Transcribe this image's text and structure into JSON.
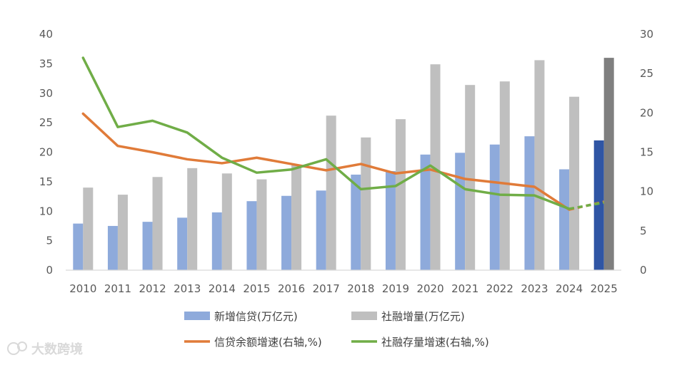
{
  "chart_data": {
    "type": "bar",
    "categories": [
      "2010",
      "2011",
      "2012",
      "2013",
      "2014",
      "2015",
      "2016",
      "2017",
      "2018",
      "2019",
      "2020",
      "2021",
      "2022",
      "2023",
      "2024",
      "2025"
    ],
    "y_left": {
      "ticks": [
        "0",
        "5",
        "10",
        "15",
        "20",
        "25",
        "30",
        "35",
        "40"
      ],
      "ylim": [
        0,
        40
      ]
    },
    "y_right": {
      "ticks": [
        "0",
        "5",
        "10",
        "15",
        "20",
        "25",
        "30"
      ],
      "ylim": [
        0,
        30
      ]
    },
    "series": [
      {
        "name": "新增信贷(万亿元)",
        "kind": "bar",
        "axis": "left",
        "color": "#8eaadb",
        "highlight_color": "#2f55a4",
        "values": [
          7.9,
          7.5,
          8.2,
          8.9,
          9.8,
          11.7,
          12.6,
          13.5,
          16.2,
          16.8,
          19.6,
          19.9,
          21.3,
          22.7,
          17.1,
          22.0
        ]
      },
      {
        "name": "社融增量(万亿元)",
        "kind": "bar",
        "axis": "left",
        "color": "#bfbfbf",
        "highlight_color": "#7f7f7f",
        "values": [
          14.0,
          12.8,
          15.8,
          17.3,
          16.4,
          15.4,
          17.8,
          26.2,
          22.5,
          25.6,
          34.9,
          31.4,
          32.0,
          35.6,
          29.4,
          36.0
        ]
      },
      {
        "name": "信贷余额增速(右轴,%)",
        "kind": "line",
        "axis": "right",
        "color": "#e07b39",
        "values": [
          19.9,
          15.8,
          15.0,
          14.1,
          13.6,
          14.3,
          13.5,
          12.7,
          13.5,
          12.3,
          12.8,
          11.6,
          11.1,
          10.6,
          7.7,
          8.7
        ],
        "dashed_from_index": 14
      },
      {
        "name": "社融存量增速(右轴,%)",
        "kind": "line",
        "axis": "right",
        "color": "#70ad47",
        "values": [
          27.0,
          18.2,
          19.0,
          17.5,
          14.3,
          12.4,
          12.8,
          14.1,
          10.3,
          10.7,
          13.3,
          10.3,
          9.6,
          9.5,
          7.8,
          8.6
        ],
        "dashed_from_index": 14
      }
    ],
    "highlight_index": 15,
    "legend_position": "bottom"
  },
  "watermark": "大数跨境",
  "colors": {
    "axis": "#d9d9d9",
    "tick_text": "#595959"
  }
}
